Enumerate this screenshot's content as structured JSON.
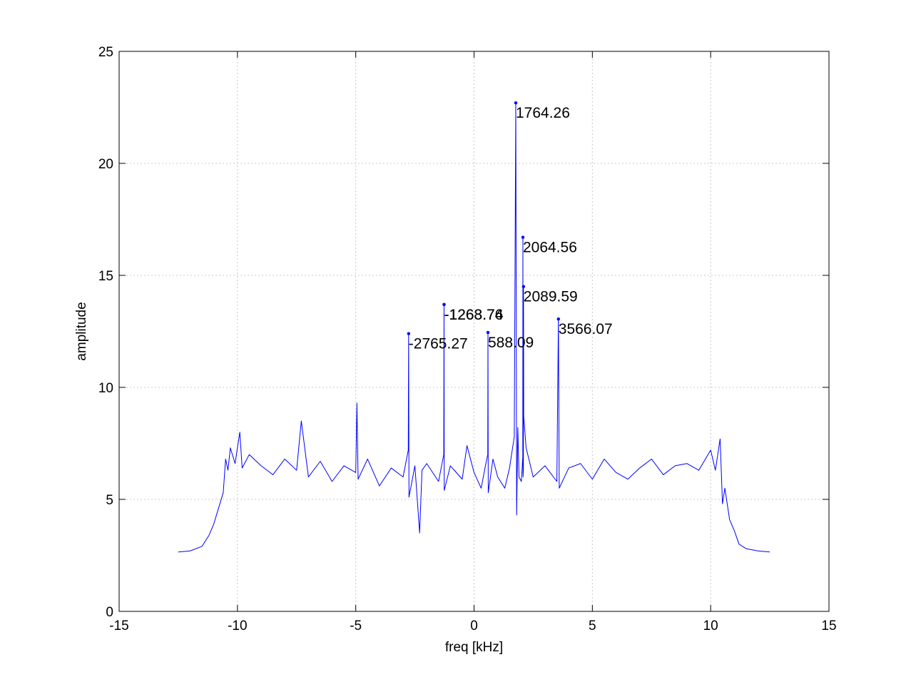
{
  "chart_data": {
    "type": "line",
    "title": "",
    "xlabel": "freq [kHz]",
    "ylabel": "amplitude",
    "xlim": [
      -15,
      15
    ],
    "ylim": [
      0,
      25
    ],
    "xticks": [
      -15,
      -10,
      -5,
      0,
      5,
      10,
      15
    ],
    "yticks": [
      0,
      5,
      10,
      15,
      20,
      25
    ],
    "grid": true,
    "line_color": "#0000ff",
    "series": [
      {
        "x": [
          -12.5,
          -12.0,
          -11.5,
          -11.2,
          -11.0,
          -10.8,
          -10.6,
          -10.5,
          -10.4,
          -10.3,
          -10.1,
          -9.9,
          -9.8,
          -9.5,
          -9.0,
          -8.5,
          -8.0,
          -7.5,
          -7.3,
          -7.0,
          -6.5,
          -6.0,
          -5.5,
          -5.0,
          -4.95,
          -4.9,
          -4.5,
          -4.0,
          -3.5,
          -3.0,
          -2.78,
          -2.765,
          -2.75,
          -2.5,
          -2.3,
          -2.2,
          -2.0,
          -1.5,
          -1.28,
          -1.2688,
          -1.26,
          -1.0,
          -0.5,
          -0.3,
          0.0,
          0.3,
          0.5,
          0.58,
          0.588,
          0.6,
          0.8,
          1.0,
          1.3,
          1.5,
          1.7,
          1.764,
          1.8,
          1.85,
          1.9,
          2.0,
          2.06,
          2.0646,
          2.07,
          2.085,
          2.0896,
          2.1,
          2.2,
          2.5,
          3.0,
          3.5,
          3.566,
          3.6,
          4.0,
          4.5,
          5.0,
          5.5,
          6.0,
          6.5,
          7.0,
          7.5,
          8.0,
          8.5,
          9.0,
          9.5,
          10.0,
          10.2,
          10.4,
          10.5,
          10.6,
          10.8,
          11.0,
          11.2,
          11.5,
          12.0,
          12.5
        ],
        "y": [
          2.65,
          2.7,
          2.9,
          3.4,
          3.9,
          4.6,
          5.3,
          6.8,
          6.3,
          7.3,
          6.6,
          8.0,
          6.4,
          7.0,
          6.5,
          6.1,
          6.8,
          6.3,
          8.5,
          6.0,
          6.7,
          5.8,
          6.5,
          6.2,
          9.3,
          5.9,
          6.8,
          5.6,
          6.4,
          6.0,
          7.2,
          12.4,
          5.1,
          6.5,
          3.5,
          6.3,
          6.6,
          5.8,
          7.0,
          13.7,
          5.4,
          6.5,
          5.9,
          7.4,
          6.2,
          5.5,
          6.6,
          7.0,
          12.4,
          5.3,
          6.8,
          6.0,
          5.5,
          6.4,
          7.8,
          22.7,
          4.3,
          8.2,
          6.0,
          5.8,
          6.9,
          16.7,
          6.0,
          6.3,
          14.5,
          8.7,
          7.3,
          6.0,
          6.5,
          5.8,
          13.1,
          5.5,
          6.4,
          6.6,
          5.9,
          6.8,
          6.2,
          5.9,
          6.4,
          6.8,
          6.1,
          6.5,
          6.6,
          6.3,
          7.2,
          6.3,
          7.7,
          4.8,
          5.5,
          4.1,
          3.6,
          3.0,
          2.8,
          2.7,
          2.65
        ]
      }
    ],
    "peaks": [
      {
        "x": 1.76426,
        "y": 22.7,
        "label": "1764.26"
      },
      {
        "x": 2.06456,
        "y": 16.7,
        "label": "2064.56"
      },
      {
        "x": 2.08959,
        "y": 14.5,
        "label": "2089.59"
      },
      {
        "x": 3.56607,
        "y": 13.05,
        "label": "3566.07"
      },
      {
        "x": -1.26876,
        "y": 13.7,
        "label": "-1268.76"
      },
      {
        "x": -1.26374,
        "y": 13.7,
        "label": "-1263.74"
      },
      {
        "x": -2.76527,
        "y": 12.4,
        "label": "-2765.27"
      },
      {
        "x": 0.58809,
        "y": 12.45,
        "label": "588.09"
      }
    ]
  }
}
